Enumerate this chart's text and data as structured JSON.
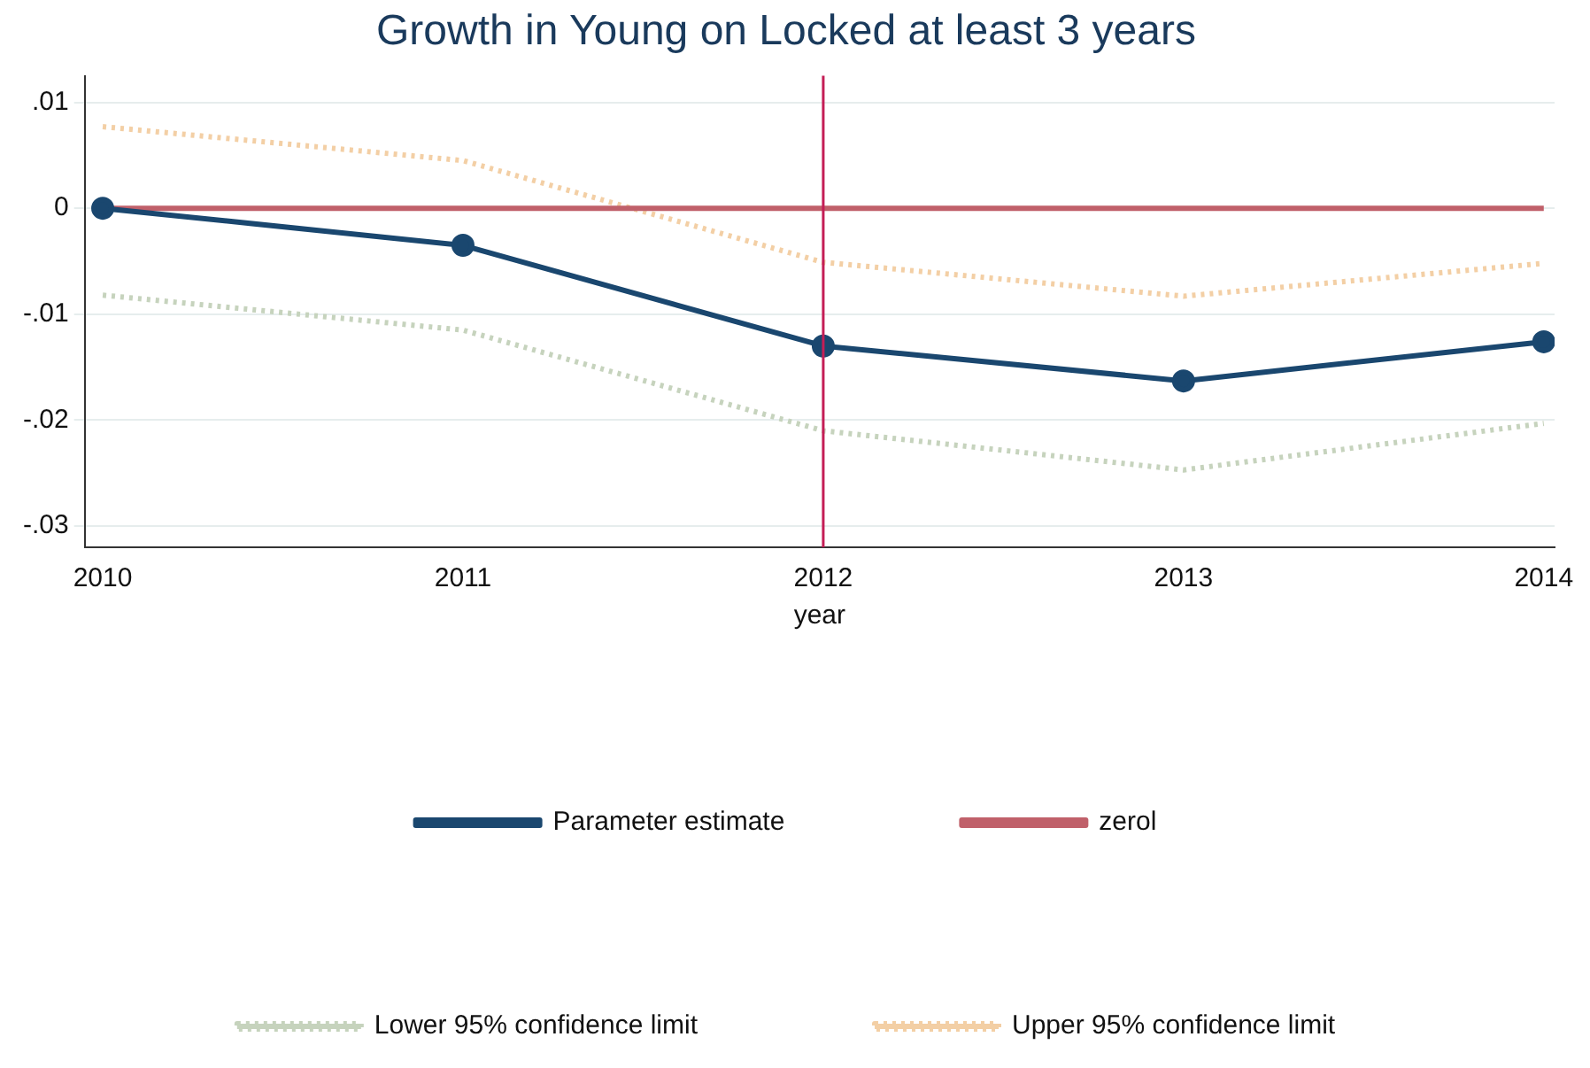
{
  "chart_data": {
    "type": "line",
    "title": "Growth in Young on Locked at least 3 years",
    "xlabel": "year",
    "x": [
      2010,
      2011,
      2012,
      2013,
      2014
    ],
    "series": [
      {
        "name": "Parameter estimate",
        "color": "#1a476f",
        "values": [
          0,
          -0.0035,
          -0.013,
          -0.0163,
          -0.0126
        ],
        "marker": "circle",
        "line_style": "solid"
      },
      {
        "name": "zerol",
        "color": "#c0606a",
        "values": [
          0,
          0,
          0,
          0,
          0
        ],
        "marker": "none",
        "line_style": "solid"
      },
      {
        "name": "Lower 95% confidence limit",
        "color": "#c6d3bd",
        "values": [
          -0.0082,
          -0.0115,
          -0.021,
          -0.0247,
          -0.0203
        ],
        "marker": "none",
        "line_style": "dotted"
      },
      {
        "name": "Upper 95% confidence limit",
        "color": "#f3cfa5",
        "values": [
          0.0077,
          0.0045,
          -0.0051,
          -0.0083,
          -0.0052
        ],
        "marker": "none",
        "line_style": "dotted"
      }
    ],
    "xlim": [
      2009.95,
      2014.03
    ],
    "xticks": [
      2010,
      2011,
      2012,
      2013,
      2014
    ],
    "ylim": [
      -0.032,
      0.0125
    ],
    "yticks": [
      {
        "value": -0.03,
        "label": "-.03"
      },
      {
        "value": -0.02,
        "label": "-.02"
      },
      {
        "value": -0.01,
        "label": "-.01"
      },
      0,
      {
        "value": 0.01,
        "label": ".01"
      }
    ],
    "ref_lines": [
      {
        "axis": "x",
        "value": 2012,
        "color": "#c41e56"
      }
    ],
    "grid": "y",
    "legend": "bottom"
  }
}
